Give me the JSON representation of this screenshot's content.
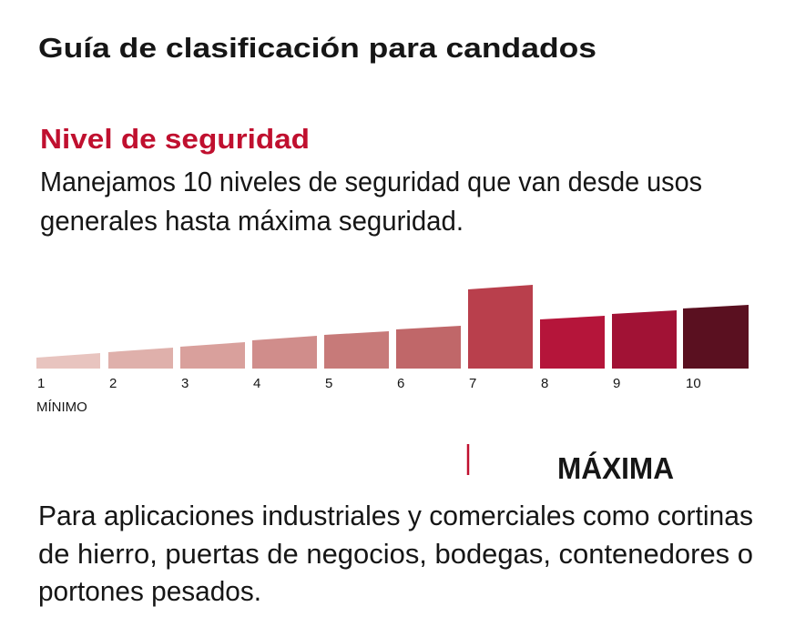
{
  "header": {
    "title": "Guía de clasificación para candados"
  },
  "section": {
    "heading": "Nivel de seguridad",
    "description_lines": [
      "Manejamos 10 niveles de seguridad que van desde usos",
      "generales hasta máxima seguridad."
    ]
  },
  "scale": {
    "levels": [
      "1",
      "2",
      "3",
      "4",
      "5",
      "6",
      "7",
      "8",
      "9",
      "10"
    ],
    "min_label": "MÍNIMO"
  },
  "highlight": {
    "label": "MÁXIMA",
    "description_lines": [
      "Para aplicaciones industriales y comerciales como cortinas",
      "de hierro, puertas de negocios, bodegas, contenedores o",
      "portones pesados."
    ]
  }
}
